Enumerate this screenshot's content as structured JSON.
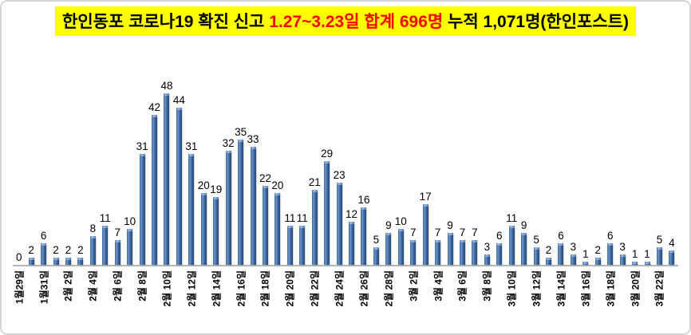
{
  "title": {
    "part1": "한인동포 코로나19 확진 신고 ",
    "part2_red": "1.27~3.23일 합계 696명",
    "part3": " 누적 1,071명(한인포스트)"
  },
  "colors": {
    "title_background": "#FFFF00",
    "title_accent_red": "#FF0000",
    "title_text": "#000000",
    "bar_blue_main": "#3A65A0",
    "bar_blue_highlight": "#6E95C5",
    "bar_blue_dark_edge": "#274973",
    "axis_line": "#B5B5B5",
    "frame_border": "#D5D5D5"
  },
  "chart_data": {
    "type": "bar",
    "title": "한인동포 코로나19 확진 신고 1.27~3.23일 합계 696명 누적 1,071명(한인포스트)",
    "values": [
      0,
      2,
      6,
      2,
      2,
      2,
      8,
      11,
      7,
      10,
      31,
      42,
      48,
      44,
      31,
      20,
      19,
      32,
      35,
      33,
      22,
      20,
      11,
      11,
      21,
      29,
      23,
      12,
      16,
      5,
      9,
      10,
      7,
      17,
      7,
      9,
      7,
      7,
      3,
      6,
      11,
      9,
      5,
      2,
      6,
      3,
      1,
      2,
      6,
      3,
      1,
      1,
      5,
      4
    ],
    "values_total": 696,
    "data_labels_shown": true,
    "x_tick_labels": [
      "1월29일",
      "1월31일",
      "2월 2일",
      "2월 4일",
      "2월 6일",
      "2월 8일",
      "2월 10일",
      "2월 12일",
      "2월 14일",
      "2월 16일",
      "2월 18일",
      "2월 20일",
      "2월 22일",
      "2월 24일",
      "2월 26일",
      "2월 28일",
      "3월 2일",
      "3월 4일",
      "3월 6일",
      "3월 8일",
      "3월 10일",
      "3월 12일",
      "3월 14일",
      "3월 16일",
      "3월 18일",
      "3월 20일",
      "3월 22일"
    ],
    "x_tick_every": 2,
    "x_tick_rotation_deg": -90,
    "ylim": [
      0,
      50
    ],
    "grid": false,
    "legend": false,
    "y_axis_labels_shown": false
  }
}
